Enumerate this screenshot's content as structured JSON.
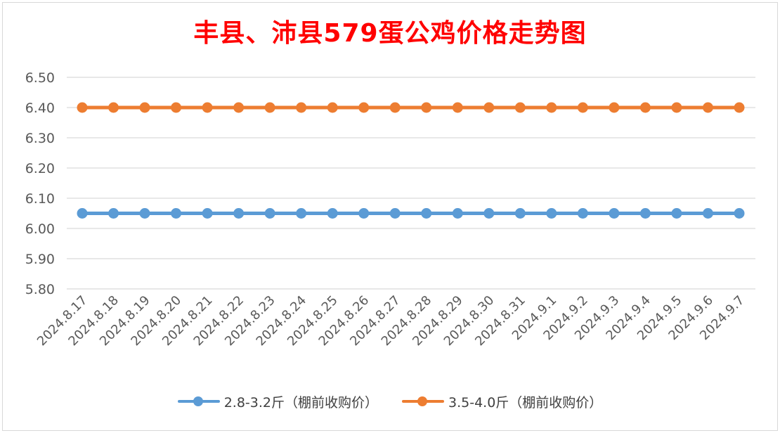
{
  "chart_data": {
    "type": "line",
    "title": "丰县、沛县579蛋公鸡价格走势图",
    "categories": [
      "2024.8.17",
      "2024.8.18",
      "2024.8.19",
      "2024.8.20",
      "2024.8.21",
      "2024.8.22",
      "2024.8.23",
      "2024.8.24",
      "2024.8.25",
      "2024.8.26",
      "2024.8.27",
      "2024.8.28",
      "2024.8.29",
      "2024.8.30",
      "2024.8.31",
      "2024.9.1",
      "2024.9.2",
      "2024.9.3",
      "2024.9.4",
      "2024.9.5",
      "2024.9.6",
      "2024.9.7"
    ],
    "ylim": [
      5.8,
      6.5
    ],
    "yticks": [
      "6.50",
      "6.40",
      "6.30",
      "6.20",
      "6.10",
      "6.00",
      "5.90",
      "5.80"
    ],
    "grid": true,
    "legend_position": "bottom",
    "series": [
      {
        "name": "2.8-3.2斤（棚前收购价）",
        "color": "#5b9bd5",
        "values": [
          6.05,
          6.05,
          6.05,
          6.05,
          6.05,
          6.05,
          6.05,
          6.05,
          6.05,
          6.05,
          6.05,
          6.05,
          6.05,
          6.05,
          6.05,
          6.05,
          6.05,
          6.05,
          6.05,
          6.05,
          6.05,
          6.05
        ]
      },
      {
        "name": "3.5-4.0斤（棚前收购价）",
        "color": "#ed7d31",
        "values": [
          6.4,
          6.4,
          6.4,
          6.4,
          6.4,
          6.4,
          6.4,
          6.4,
          6.4,
          6.4,
          6.4,
          6.4,
          6.4,
          6.4,
          6.4,
          6.4,
          6.4,
          6.4,
          6.4,
          6.4,
          6.4,
          6.4
        ]
      }
    ]
  }
}
